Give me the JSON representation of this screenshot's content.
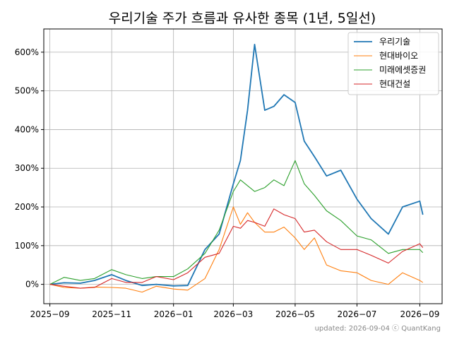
{
  "chart_data": {
    "type": "line",
    "title": "우리기술 주가 흐름과 유사한 종목 (1년, 5일선)",
    "xlabel": "",
    "ylabel": "",
    "footer": "updated: 2026-09-04 ⓒ QuantKang",
    "grid": true,
    "legend_position": "top-right",
    "xlim": [
      "2025-08-26",
      "2026-09-23"
    ],
    "ylim": [
      -50,
      660
    ],
    "x_ticks": [
      "2025-09-01",
      "2025-11-01",
      "2026-01-01",
      "2026-03-01",
      "2026-05-01",
      "2026-07-01",
      "2026-09-01"
    ],
    "x_tick_labels": [
      "2025−09",
      "2025−11",
      "2026−01",
      "2026−03",
      "2026−05",
      "2026−07",
      "2026−09"
    ],
    "y_ticks": [
      0,
      100,
      200,
      300,
      400,
      500,
      600
    ],
    "y_tick_labels": [
      "0%",
      "100%",
      "200%",
      "300%",
      "400%",
      "500%",
      "600%"
    ],
    "x": [
      "2025-09-01",
      "2025-09-15",
      "2025-10-01",
      "2025-10-15",
      "2025-11-01",
      "2025-11-15",
      "2025-12-01",
      "2025-12-15",
      "2026-01-01",
      "2026-01-15",
      "2026-02-01",
      "2026-02-15",
      "2026-03-01",
      "2026-03-08",
      "2026-03-15",
      "2026-03-22",
      "2026-04-01",
      "2026-04-10",
      "2026-04-20",
      "2026-05-01",
      "2026-05-10",
      "2026-05-20",
      "2026-06-01",
      "2026-06-15",
      "2026-07-01",
      "2026-07-15",
      "2026-08-01",
      "2026-08-15",
      "2026-09-01",
      "2026-09-04"
    ],
    "series": [
      {
        "name": "우리기술",
        "color": "#1f77b4",
        "values": [
          0,
          4,
          3,
          10,
          25,
          10,
          -3,
          0,
          -4,
          -3,
          90,
          130,
          260,
          320,
          450,
          620,
          450,
          460,
          490,
          470,
          370,
          330,
          280,
          295,
          220,
          170,
          130,
          200,
          215,
          180
        ]
      },
      {
        "name": "현대바이오",
        "color": "#ff7f0e",
        "values": [
          0,
          -8,
          -10,
          -7,
          -8,
          -10,
          -20,
          -5,
          -12,
          -15,
          15,
          90,
          200,
          155,
          185,
          160,
          135,
          135,
          148,
          120,
          90,
          120,
          50,
          35,
          30,
          10,
          0,
          30,
          10,
          5
        ]
      },
      {
        "name": "미래에셋증권",
        "color": "#2ca02c",
        "values": [
          0,
          18,
          10,
          15,
          38,
          25,
          15,
          20,
          20,
          40,
          80,
          140,
          240,
          270,
          255,
          240,
          250,
          270,
          255,
          320,
          260,
          230,
          190,
          165,
          125,
          115,
          80,
          90,
          90,
          82
        ]
      },
      {
        "name": "현대건설",
        "color": "#d62728",
        "values": [
          0,
          -5,
          -10,
          -8,
          15,
          5,
          5,
          20,
          12,
          30,
          70,
          80,
          150,
          145,
          165,
          160,
          150,
          195,
          180,
          170,
          135,
          140,
          110,
          90,
          90,
          75,
          55,
          85,
          105,
          95
        ]
      }
    ]
  }
}
